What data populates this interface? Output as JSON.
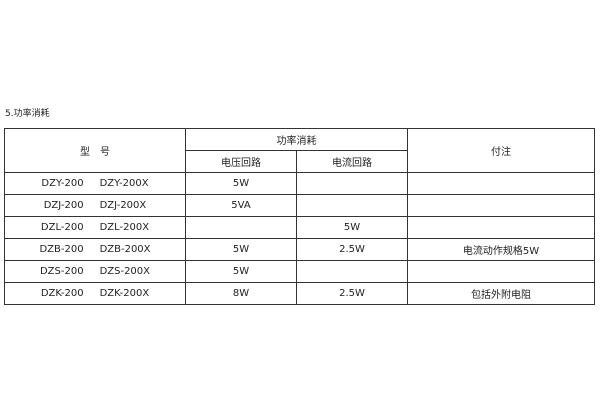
{
  "section_title": "5.功率消耗",
  "headers": {
    "model": "型　号",
    "power": "功率消耗",
    "voltage_circuit": "电压回路",
    "current_circuit": "电流回路",
    "notes": "付注"
  },
  "rows": [
    {
      "model_a": "DZY-200",
      "model_b": "DZY-200X",
      "voltage": "5W",
      "current": "",
      "note": ""
    },
    {
      "model_a": "DZJ-200",
      "model_b": "DZJ-200X",
      "voltage": "5VA",
      "current": "",
      "note": ""
    },
    {
      "model_a": "DZL-200",
      "model_b": "DZL-200X",
      "voltage": "",
      "current": "5W",
      "note": ""
    },
    {
      "model_a": "DZB-200",
      "model_b": "DZB-200X",
      "voltage": "5W",
      "current": "2.5W",
      "note": "电流动作规格5W"
    },
    {
      "model_a": "DZS-200",
      "model_b": "DZS-200X",
      "voltage": "5W",
      "current": "",
      "note": ""
    },
    {
      "model_a": "DZK-200",
      "model_b": "DZK-200X",
      "voltage": "8W",
      "current": "2.5W",
      "note": "包括外附电阻"
    }
  ]
}
